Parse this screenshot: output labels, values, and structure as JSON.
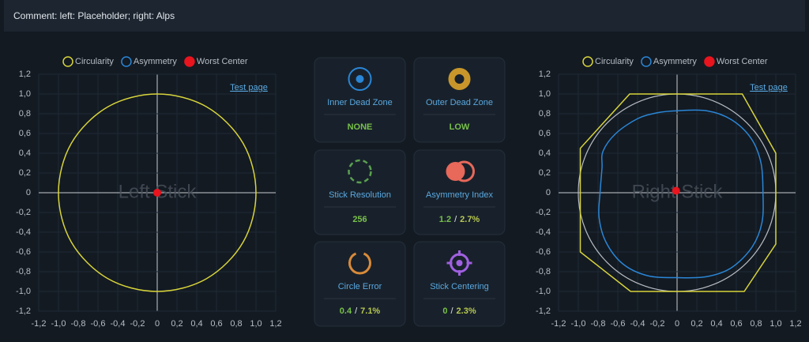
{
  "comment": "Comment: left: Placeholder; right: Alps",
  "value_separator": "/",
  "charts": [
    {
      "watermark": "Left Stick",
      "link": "Test page",
      "xlim": [
        -1.2,
        1.2
      ],
      "ylim": [
        -1.2,
        1.2
      ],
      "xticks": [
        {
          "value": -1.2,
          "label": "-1,2"
        },
        {
          "value": -1.0,
          "label": "-1,0"
        },
        {
          "value": -0.8,
          "label": "-0,8"
        },
        {
          "value": -0.6,
          "label": "-0,6"
        },
        {
          "value": -0.4,
          "label": "-0,4"
        },
        {
          "value": -0.2,
          "label": "-0,2"
        },
        0,
        {
          "value": 0.2,
          "label": "0,2"
        },
        {
          "value": 0.4,
          "label": "0,4"
        },
        {
          "value": 0.6,
          "label": "0,6"
        },
        {
          "value": 0.8,
          "label": "0,8"
        },
        {
          "value": 1.0,
          "label": "1,0"
        },
        {
          "value": 1.2,
          "label": "1,2"
        }
      ],
      "yticks": [
        {
          "value": -1.2,
          "label": "-1,2"
        },
        {
          "value": -1.0,
          "label": "-1,0"
        },
        {
          "value": -0.8,
          "label": "-0,8"
        },
        {
          "value": -0.6,
          "label": "-0,6"
        },
        {
          "value": -0.4,
          "label": "-0,4"
        },
        {
          "value": -0.2,
          "label": "-0,2"
        },
        0,
        {
          "value": 0.2,
          "label": "0,2"
        },
        {
          "value": 0.4,
          "label": "0,4"
        },
        {
          "value": 0.6,
          "label": "0,6"
        },
        {
          "value": 0.8,
          "label": "0,8"
        },
        {
          "value": 1.0,
          "label": "1,0"
        },
        {
          "value": 1.2,
          "label": "1,2"
        }
      ],
      "series": [
        {
          "name": "Circularity",
          "color": "#d8d43a",
          "curve": "smooth",
          "x": [
            1,
            0.87,
            0.5,
            0,
            -0.5,
            -0.87,
            -1,
            -0.87,
            -0.5,
            0,
            0.5,
            0.87
          ],
          "y": [
            0,
            0.5,
            0.87,
            1,
            0.87,
            0.5,
            0,
            -0.5,
            -0.87,
            -1,
            -0.87,
            -0.5
          ]
        },
        {
          "name": "Asymmetry",
          "color": "#2a86d6",
          "curve": "smooth",
          "x": [],
          "y": []
        },
        {
          "name": "Worst Center",
          "color": "#e8141e",
          "curve": "point",
          "x": [
            0
          ],
          "y": [
            0
          ]
        }
      ]
    },
    {
      "watermark": "Right Stick",
      "link": "Test page",
      "reference_radius": 1,
      "xlim": [
        -1.2,
        1.2
      ],
      "ylim": [
        -1.2,
        1.2
      ],
      "xticks": [
        {
          "value": -1.2,
          "label": "-1,2"
        },
        {
          "value": -1.0,
          "label": "-1,0"
        },
        {
          "value": -0.8,
          "label": "-0,8"
        },
        {
          "value": -0.6,
          "label": "-0,6"
        },
        {
          "value": -0.4,
          "label": "-0,4"
        },
        {
          "value": -0.2,
          "label": "-0,2"
        },
        0,
        {
          "value": 0.2,
          "label": "0,2"
        },
        {
          "value": 0.4,
          "label": "0,4"
        },
        {
          "value": 0.6,
          "label": "0,6"
        },
        {
          "value": 0.8,
          "label": "0,8"
        },
        {
          "value": 1.0,
          "label": "1,0"
        },
        {
          "value": 1.2,
          "label": "1,2"
        }
      ],
      "yticks": [
        {
          "value": -1.2,
          "label": "-1,2"
        },
        {
          "value": -1.0,
          "label": "-1,0"
        },
        {
          "value": -0.8,
          "label": "-0,8"
        },
        {
          "value": -0.6,
          "label": "-0,6"
        },
        {
          "value": -0.4,
          "label": "-0,4"
        },
        {
          "value": -0.2,
          "label": "-0,2"
        },
        0,
        {
          "value": 0.2,
          "label": "0,2"
        },
        {
          "value": 0.4,
          "label": "0,4"
        },
        {
          "value": 0.6,
          "label": "0,6"
        },
        {
          "value": 0.8,
          "label": "0,8"
        },
        {
          "value": 1.0,
          "label": "1,0"
        },
        {
          "value": 1.2,
          "label": "1,2"
        }
      ],
      "series": [
        {
          "name": "Circularity",
          "color": "#d8d43a",
          "curve": "linear",
          "x": [
            -0.48,
            0.66,
            1.0,
            1.0,
            0.68,
            -0.47,
            -0.98,
            -0.98
          ],
          "y": [
            1.0,
            1.0,
            0.4,
            -0.52,
            -1.0,
            -1.0,
            -0.6,
            0.45
          ]
        },
        {
          "name": "Asymmetry",
          "color": "#2a86d6",
          "curve": "smooth",
          "x": [
            0,
            0.3,
            0.55,
            0.75,
            0.85,
            0.87,
            0.86,
            0.76,
            0.55,
            0.3,
            0,
            -0.3,
            -0.55,
            -0.72,
            -0.79,
            -0.78,
            -0.76,
            -0.75,
            -0.62,
            -0.4,
            -0.2
          ],
          "y": [
            0.83,
            0.83,
            0.74,
            0.55,
            0.3,
            0,
            -0.3,
            -0.55,
            -0.76,
            -0.85,
            -0.86,
            -0.84,
            -0.72,
            -0.5,
            -0.25,
            0,
            0.25,
            0.42,
            0.6,
            0.75,
            0.81
          ]
        },
        {
          "name": "Worst Center",
          "color": "#e8141e",
          "curve": "point",
          "x": [
            -0.01
          ],
          "y": [
            0.02
          ]
        }
      ]
    }
  ],
  "cards": [
    {
      "title": "Inner Dead Zone",
      "value": "NONE"
    },
    {
      "title": "Outer Dead Zone",
      "value": "LOW"
    },
    {
      "title": "Stick Resolution",
      "value": "256"
    },
    {
      "title": "Asymmetry Index",
      "value": "1.2",
      "percent": "2.7%"
    },
    {
      "title": "Circle Error",
      "value": "0.4",
      "percent": "7.1%"
    },
    {
      "title": "Stick Centering",
      "value": "0",
      "percent": "2.3%"
    }
  ]
}
